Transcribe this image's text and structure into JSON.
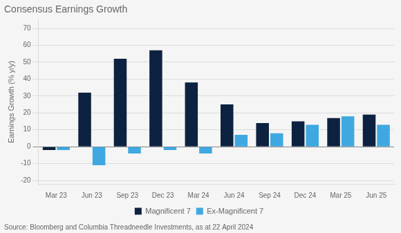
{
  "chart_data": {
    "type": "bar",
    "title": "Consensus Earnings Growth",
    "categories": [
      "Mar 23",
      "Jun 23",
      "Sep 23",
      "Dec 23",
      "Mar 24",
      "Jun 24",
      "Sep 24",
      "Dec 24",
      "Mar 25",
      "Jun 25"
    ],
    "series": [
      {
        "name": "Magnificent 7",
        "color": "#0d2240",
        "values": [
          -2,
          32,
          52,
          57,
          38,
          25,
          14,
          15,
          17,
          19
        ]
      },
      {
        "name": "Ex-Magnificent 7",
        "color": "#3fa8e0",
        "values": [
          -2,
          -11,
          -4,
          -2,
          -4,
          7,
          8,
          13,
          18,
          13
        ]
      }
    ],
    "ylabel": "Earnings Growth (% y/y)",
    "ylim": [
      -22,
      75
    ],
    "yticks": [
      -20,
      -10,
      0,
      10,
      20,
      30,
      40,
      50,
      60,
      70
    ],
    "grid": true,
    "legend": "bottom",
    "annotation": "Source: Bloomberg and Columbia Threadneedle Investments, as at 22 April 2024"
  }
}
